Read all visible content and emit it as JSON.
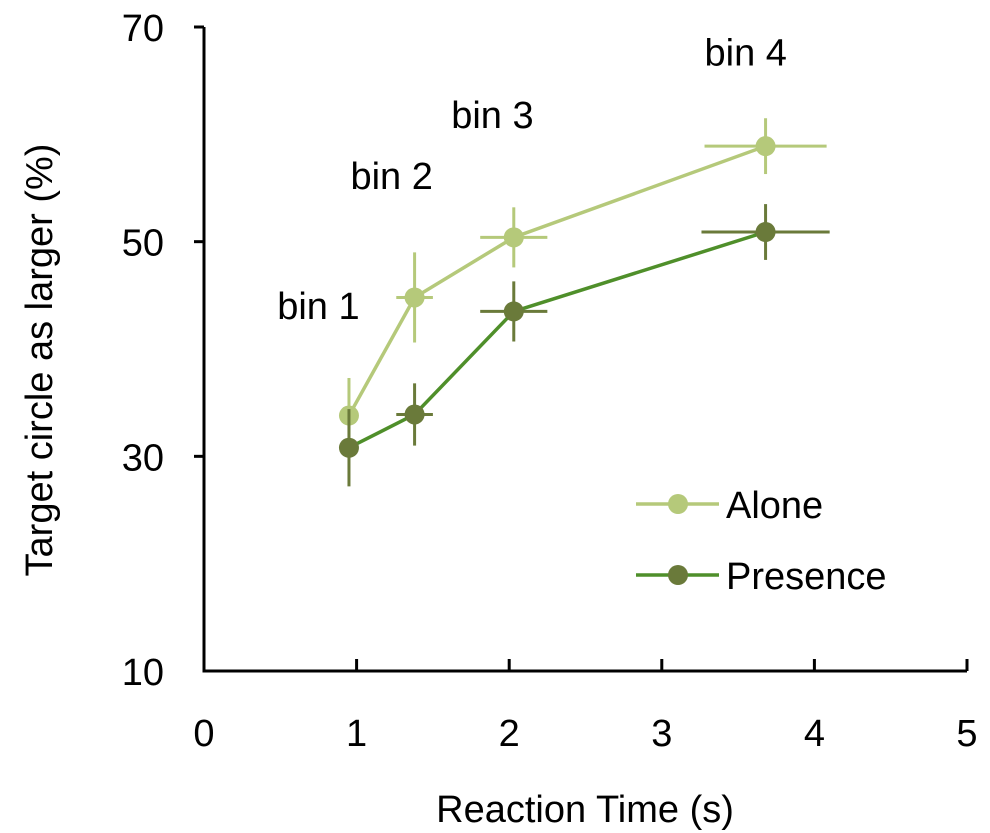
{
  "chart_data": {
    "type": "line",
    "title": "",
    "xlabel": "Reaction Time (s)",
    "ylabel": "Target circle as larger (%)",
    "xlim": [
      0,
      5
    ],
    "ylim": [
      10,
      70
    ],
    "xticks": [
      0,
      1,
      2,
      3,
      4,
      5
    ],
    "yticks": [
      10,
      30,
      50,
      70
    ],
    "grid": false,
    "legend_position": "bottom-right",
    "series": [
      {
        "name": "Alone",
        "color": "#b5c97a",
        "points": [
          {
            "x": 0.95,
            "y": 33.8,
            "xerr": 0.05,
            "yerr": 3.5
          },
          {
            "x": 1.38,
            "y": 44.8,
            "xerr": 0.12,
            "yerr": 4.2
          },
          {
            "x": 2.03,
            "y": 50.4,
            "xerr": 0.22,
            "yerr": 2.8
          },
          {
            "x": 3.68,
            "y": 58.9,
            "xerr": 0.4,
            "yerr": 2.6
          }
        ]
      },
      {
        "name": "Presence",
        "color": "#6a7a3a",
        "line_color": "#4f8f2a",
        "points": [
          {
            "x": 0.95,
            "y": 30.8,
            "xerr": 0.05,
            "yerr": 3.6
          },
          {
            "x": 1.38,
            "y": 33.9,
            "xerr": 0.12,
            "yerr": 2.9
          },
          {
            "x": 2.03,
            "y": 43.5,
            "xerr": 0.22,
            "yerr": 2.8
          },
          {
            "x": 3.68,
            "y": 50.9,
            "xerr": 0.42,
            "yerr": 2.6
          }
        ]
      }
    ],
    "annotations": [
      {
        "text": "bin 1",
        "x": 0.75,
        "y": 42.8
      },
      {
        "text": "bin 2",
        "x": 1.23,
        "y": 54.9
      },
      {
        "text": "bin 3",
        "x": 1.89,
        "y": 60.6
      },
      {
        "text": "bin 4",
        "x": 3.55,
        "y": 66.4
      }
    ]
  }
}
